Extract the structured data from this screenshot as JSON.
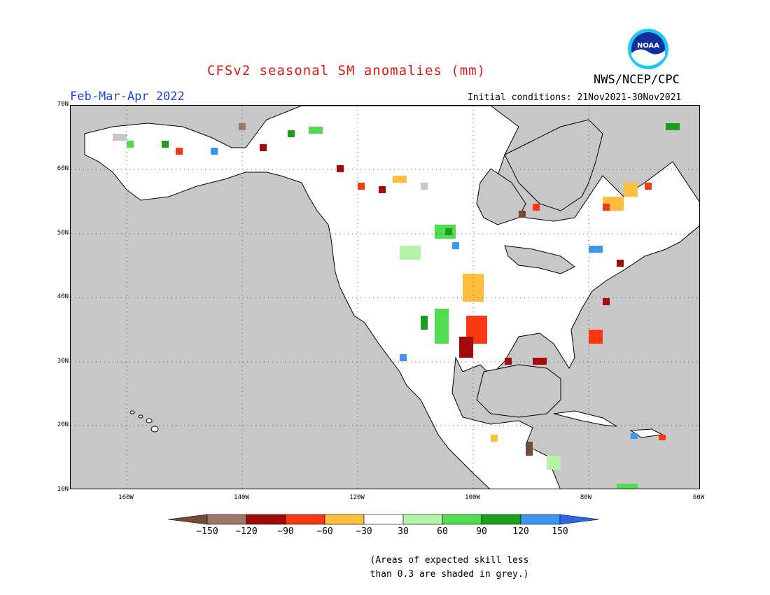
{
  "title": "CFSv2 seasonal SM anomalies (mm)",
  "period": "Feb-Mar-Apr 2022",
  "agency": "NWS/NCEP/CPC",
  "logo_text": "NOAA",
  "initial_conditions": "Initial conditions: 21Nov2021-30Nov2021",
  "lat_labels": [
    "70N",
    "60N",
    "50N",
    "40N",
    "30N",
    "20N",
    "10N"
  ],
  "lon_labels": [
    "160W",
    "140W",
    "120W",
    "100W",
    "80W",
    "60W"
  ],
  "colorbar": {
    "bins": [
      {
        "color": "#734b36"
      },
      {
        "color": "#9e766a"
      },
      {
        "color": "#a30a0a"
      },
      {
        "color": "#fc3812"
      },
      {
        "color": "#ffbe3c"
      },
      {
        "color": "#ffffff"
      },
      {
        "color": "#b4f4a6"
      },
      {
        "color": "#50de50"
      },
      {
        "color": "#1aa01a"
      },
      {
        "color": "#3c96f0"
      },
      {
        "color": "#2a69e6"
      }
    ],
    "labels": [
      "-150",
      "-120",
      "-90",
      "-60",
      "-30",
      "30",
      "60",
      "90",
      "120",
      "150"
    ]
  },
  "colors": {
    "land_no_skill": "#c7c7c7",
    "ocean": "#c7c7c7",
    "title": "#e01818",
    "period": "#1f3fe0"
  },
  "note_line1": "(Areas of expected skill less",
  "note_line2": "than 0.3 are shaded in grey.)"
}
